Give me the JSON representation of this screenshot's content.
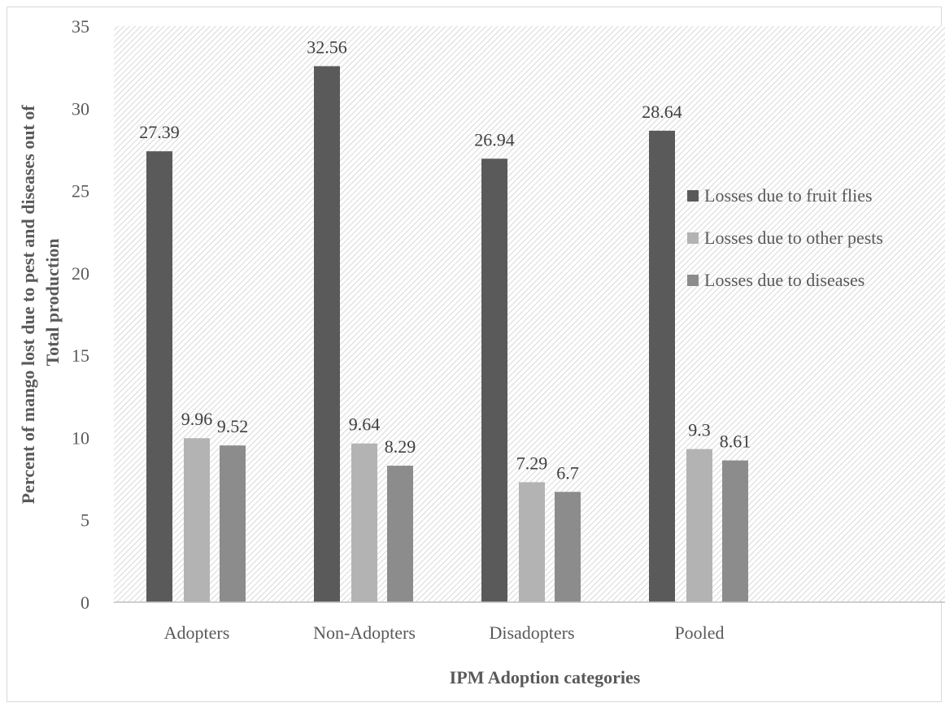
{
  "chart_data": {
    "type": "bar",
    "categories": [
      "Adopters",
      "Non-Adopters",
      "Disadopters",
      "Pooled"
    ],
    "series": [
      {
        "name": "Losses due to fruit flies",
        "values": [
          27.39,
          32.56,
          26.94,
          28.64
        ],
        "labels": [
          "27.39",
          "32.56",
          "26.94",
          "28.64"
        ],
        "color": "#5a5a5a"
      },
      {
        "name": "Losses due to other pests",
        "values": [
          9.96,
          9.64,
          7.29,
          9.3
        ],
        "labels": [
          "9.96",
          "9.64",
          "7.29",
          "9.3"
        ],
        "color": "#b3b3b3"
      },
      {
        "name": "Losses due to diseases",
        "values": [
          9.52,
          8.29,
          6.7,
          8.61
        ],
        "labels": [
          "9.52",
          "8.29",
          "6.7",
          "8.61"
        ],
        "color": "#8c8c8c"
      }
    ],
    "yticks": [
      0,
      5,
      10,
      15,
      20,
      25,
      30,
      35
    ],
    "ylim": [
      0,
      35
    ],
    "xlabel": "IPM Adoption categories",
    "ylabel_lines": [
      "Percent of mango lost due to pest and diseases out of",
      "Total production"
    ],
    "legend_position": "right",
    "background": "diagonal-hatch"
  }
}
